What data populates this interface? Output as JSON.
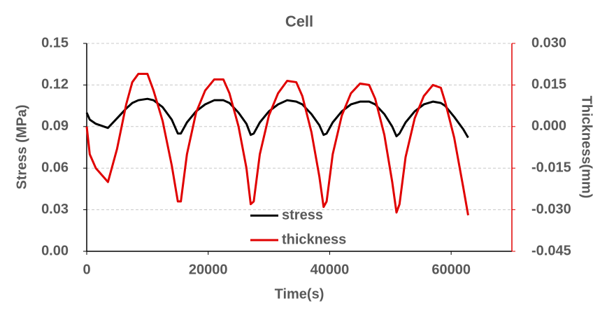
{
  "chart_data": {
    "type": "line",
    "title": "Cell",
    "x_label": "Time(s)",
    "y_label": "Stress (MPa)",
    "y2_label": "Thickness(mm)",
    "x": [
      0,
      500,
      1500,
      3500,
      5000,
      6500,
      7500,
      8500,
      10000,
      11000,
      12500,
      14000,
      15000,
      15500,
      16500,
      18000,
      19500,
      21000,
      22500,
      23500,
      25000,
      26300,
      27000,
      27500,
      28500,
      30000,
      31500,
      33000,
      34500,
      35500,
      37000,
      38300,
      39000,
      39500,
      40500,
      42000,
      43500,
      45000,
      46500,
      47500,
      49000,
      50300,
      51000,
      51500,
      52500,
      54000,
      55500,
      57000,
      58300,
      59000,
      60500,
      62000,
      62800
    ],
    "series": [
      {
        "name": "stress",
        "color": "#000000",
        "values": [
          0.1,
          0.095,
          0.092,
          0.089,
          0.096,
          0.103,
          0.107,
          0.109,
          0.11,
          0.109,
          0.104,
          0.095,
          0.085,
          0.085,
          0.093,
          0.101,
          0.106,
          0.109,
          0.109,
          0.107,
          0.1,
          0.092,
          0.084,
          0.085,
          0.093,
          0.101,
          0.106,
          0.109,
          0.108,
          0.106,
          0.099,
          0.091,
          0.084,
          0.085,
          0.093,
          0.101,
          0.106,
          0.108,
          0.108,
          0.106,
          0.099,
          0.09,
          0.083,
          0.085,
          0.093,
          0.101,
          0.106,
          0.108,
          0.107,
          0.105,
          0.097,
          0.088,
          0.082
        ]
      },
      {
        "name": "thickness",
        "color": "#e00000",
        "axis": "y2",
        "values": [
          0.0,
          -0.01,
          -0.015,
          -0.02,
          -0.008,
          0.008,
          0.016,
          0.019,
          0.019,
          0.013,
          0.002,
          -0.014,
          -0.027,
          -0.027,
          -0.01,
          0.005,
          0.013,
          0.017,
          0.017,
          0.012,
          0.0,
          -0.015,
          -0.028,
          -0.027,
          -0.01,
          0.004,
          0.012,
          0.0165,
          0.016,
          0.011,
          -0.002,
          -0.018,
          -0.029,
          -0.027,
          -0.01,
          0.004,
          0.012,
          0.0155,
          0.015,
          0.01,
          -0.003,
          -0.02,
          -0.031,
          -0.028,
          -0.011,
          0.003,
          0.011,
          0.015,
          0.014,
          0.009,
          -0.004,
          -0.022,
          -0.032
        ]
      }
    ],
    "xlim": [
      0,
      70000
    ],
    "xticks": [
      0,
      20000,
      40000,
      60000
    ],
    "ylim": [
      0,
      0.15
    ],
    "yticks": [
      {
        "value": 0,
        "label": "0.00"
      },
      0.03,
      0.06,
      0.09,
      0.12,
      0.15
    ],
    "y2lim": [
      -0.045,
      0.03
    ],
    "y2ticks": [
      -0.045,
      {
        "value": -0.03,
        "label": "-0.030"
      },
      -0.015,
      {
        "value": 0,
        "label": "0.000"
      },
      0.015,
      {
        "value": 0.03,
        "label": "0.030"
      }
    ],
    "y2_axis_color": "#e00000",
    "grid": true,
    "legend": "lower-center"
  }
}
